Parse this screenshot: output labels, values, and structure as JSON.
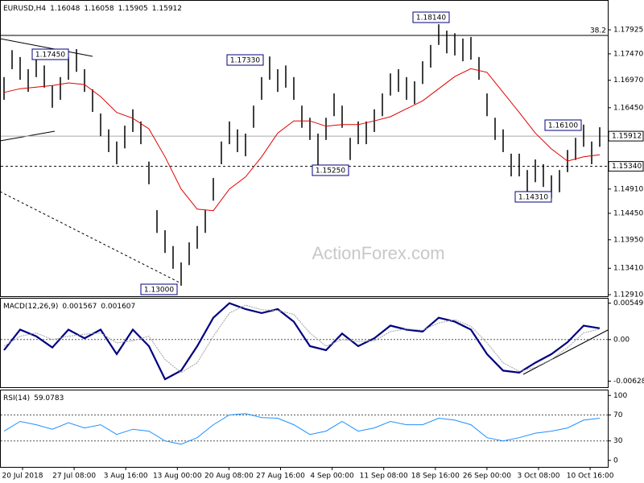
{
  "chart_data": [
    {
      "type": "ohlc",
      "title": "EURUSD,H4",
      "header_values": [
        1.16048,
        1.16058,
        1.15905,
        1.15912
      ],
      "color": "#000000",
      "high": [
        1.1703,
        1.1754,
        1.1741,
        1.1718,
        1.1745,
        1.1725,
        1.1687,
        1.1703,
        1.1741,
        1.1756,
        1.1718,
        1.168,
        1.1634,
        1.1604,
        1.1581,
        1.1611,
        1.1642,
        1.1619,
        1.1543,
        1.1451,
        1.1413,
        1.1383,
        1.1352,
        1.139,
        1.1421,
        1.1451,
        1.1512,
        1.1581,
        1.1619,
        1.1604,
        1.1596,
        1.1649,
        1.1703,
        1.1742,
        1.1718,
        1.1725,
        1.1703,
        1.1649,
        1.1626,
        1.1596,
        1.1626,
        1.1672,
        1.1649,
        1.1588,
        1.1619,
        1.1619,
        1.1642,
        1.1672,
        1.171,
        1.1718,
        1.1703,
        1.1695,
        1.1733,
        1.1764,
        1.1803,
        1.1791,
        1.1786,
        1.1776,
        1.1779,
        1.1741,
        1.1672,
        1.1626,
        1.1604,
        1.1558,
        1.1558,
        1.1527,
        1.1547,
        1.1538,
        1.1517,
        1.1527,
        1.1565,
        1.1588,
        1.1613,
        1.1581,
        1.1608
      ],
      "low": [
        1.166,
        1.1718,
        1.1698,
        1.1675,
        1.1703,
        1.1683,
        1.1645,
        1.166,
        1.1698,
        1.1713,
        1.1675,
        1.1637,
        1.1591,
        1.1561,
        1.1538,
        1.1568,
        1.1599,
        1.1576,
        1.15,
        1.1408,
        1.137,
        1.134,
        1.1308,
        1.1347,
        1.1378,
        1.1408,
        1.1469,
        1.1538,
        1.1576,
        1.1561,
        1.1553,
        1.1607,
        1.166,
        1.1698,
        1.1675,
        1.1683,
        1.166,
        1.1607,
        1.1584,
        1.1529,
        1.1584,
        1.1629,
        1.1607,
        1.1546,
        1.1576,
        1.1576,
        1.1599,
        1.1629,
        1.1668,
        1.1675,
        1.166,
        1.1652,
        1.169,
        1.1721,
        1.1764,
        1.1748,
        1.1744,
        1.1733,
        1.1736,
        1.1698,
        1.1629,
        1.1584,
        1.1561,
        1.1515,
        1.1515,
        1.1485,
        1.1504,
        1.1495,
        1.1474,
        1.1485,
        1.1523,
        1.1546,
        1.1571,
        1.1538,
        1.1571
      ],
      "ma": {
        "color": "#e00000",
        "values": [
          1.1674,
          1.1681,
          1.1684,
          1.1687,
          1.1692,
          1.1689,
          1.1666,
          1.1636,
          1.1625,
          1.1605,
          1.1552,
          1.1491,
          1.1453,
          1.145,
          1.1491,
          1.1514,
          1.1552,
          1.1597,
          1.162,
          1.162,
          1.161,
          1.1613,
          1.1613,
          1.162,
          1.1628,
          1.1643,
          1.1658,
          1.1681,
          1.1704,
          1.1719,
          1.1712,
          1.1674,
          1.1636,
          1.1597,
          1.1567,
          1.1544,
          1.1552,
          1.1556
        ]
      },
      "ylim": [
        1.1288,
        1.1849
      ],
      "yticks": [
        1.17925,
        {
          "value": 1.1747,
          "label": "1.17470"
        },
        {
          "value": 1.1697,
          "label": "1.16970"
        },
        {
          "value": 1.1645,
          "label": "1.16450"
        },
        {
          "value": 1.1491,
          "label": "1.14910"
        },
        {
          "value": 1.1445,
          "label": "1.14450"
        },
        {
          "value": 1.1395,
          "label": "1.13950"
        },
        {
          "value": 1.1341,
          "label": "1.13410"
        },
        {
          "value": 1.1291,
          "label": "1.12910"
        }
      ],
      "last_price": 1.15912,
      "level": {
        "value": 1.1534,
        "label": "1.15340"
      },
      "fib": {
        "value": 1.1782,
        "label": "38.2"
      },
      "annotations": [
        {
          "value": 1.1745,
          "label": "1.17450"
        },
        {
          "value": 1.1733,
          "label": "1.17330"
        },
        {
          "value": 1.1814,
          "label": "1.18140"
        },
        {
          "value": 1.161,
          "label": "1.16100"
        },
        {
          "value": 1.1525,
          "label": "1.15250"
        },
        {
          "value": 1.1431,
          "label": "1.14310"
        },
        {
          "value": 1.13,
          "label": "1.13000"
        }
      ],
      "watermark": "ActionForex.com",
      "time_labels": [
        "20 Jul 2018",
        "27 Jul 08:00",
        "3 Aug 16:00",
        "13 Aug 00:00",
        "20 Aug 08:00",
        "27 Aug 16:00",
        "4 Sep 00:00",
        "11 Sep 08:00",
        "18 Sep 16:00",
        "26 Sep 00:00",
        "3 Oct 08:00",
        "10 Oct 16:00"
      ]
    },
    {
      "type": "line",
      "title": "MACD(12,26,9)",
      "header_values": [
        0.001567,
        0.001607
      ],
      "series": [
        {
          "color": "#000080",
          "values": [
            -0.0016,
            0.0015,
            0.0005,
            -0.0012,
            0.0015,
            0.0002,
            0.0015,
            -0.0022,
            0.0015,
            -0.001,
            -0.006,
            -0.0047,
            -0.001,
            0.0033,
            0.0055,
            0.0046,
            0.004,
            0.0046,
            0.0027,
            -0.001,
            -0.0016,
            0.0009,
            -0.001,
            0.0002,
            0.0021,
            0.0015,
            0.0012,
            0.0033,
            0.0027,
            0.0015,
            -0.0022,
            -0.0047,
            -0.005,
            -0.0035,
            -0.0022,
            -0.0004,
            0.0021,
            0.0017
          ]
        },
        {
          "color": "#a0a0a0",
          "values": [
            -0.001,
            0.0005,
            0.001,
            0.0,
            0.0005,
            0.0008,
            0.001,
            -0.0005,
            -0.0002,
            0.0005,
            -0.003,
            -0.005,
            -0.0035,
            0.0005,
            0.004,
            0.0052,
            0.0045,
            0.0044,
            0.0038,
            0.001,
            -0.001,
            0.0,
            -0.0003,
            -0.0002,
            0.0012,
            0.0016,
            0.0014,
            0.0025,
            0.003,
            0.002,
            -0.0005,
            -0.0035,
            -0.0048,
            -0.0042,
            -0.003,
            -0.0012,
            0.001,
            0.0016
          ]
        }
      ],
      "ylim": [
        -0.0072,
        0.0063
      ],
      "yticks": [
        0.005498,
        {
          "value": 0,
          "label": "0.00"
        },
        -0.006283
      ],
      "levels": [
        0
      ]
    },
    {
      "type": "line",
      "title": "RSI(14)",
      "header_values": [
        59.0783
      ],
      "series": [
        {
          "color": "#1e90ff",
          "values": [
            45,
            60,
            55,
            48,
            58,
            50,
            55,
            40,
            48,
            45,
            30,
            25,
            35,
            55,
            70,
            72,
            66,
            65,
            55,
            40,
            45,
            60,
            45,
            50,
            60,
            55,
            55,
            65,
            62,
            55,
            35,
            30,
            35,
            42,
            45,
            50,
            62,
            65
          ]
        }
      ],
      "ylim": [
        -10,
        109
      ],
      "yticks": [
        100,
        70,
        30,
        0
      ],
      "levels": [
        70,
        30
      ]
    }
  ]
}
